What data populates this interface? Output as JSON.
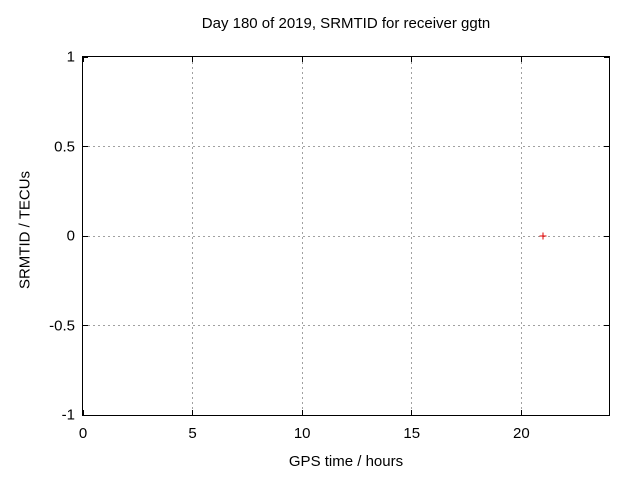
{
  "chart_data": {
    "type": "scatter",
    "title": "Day 180 of 2019, SRMTID for receiver ggtn",
    "xlabel": "GPS time / hours",
    "ylabel": "SRMTID / TECUs",
    "xlim": [
      0,
      24
    ],
    "ylim": [
      -1,
      1
    ],
    "xticks": [
      0,
      5,
      10,
      15,
      20
    ],
    "xtick_labels": [
      "0",
      "5",
      "10",
      "15",
      "20"
    ],
    "yticks": [
      1,
      0.5,
      0,
      -0.5,
      -1
    ],
    "ytick_labels": [
      "1",
      "0.5",
      "0",
      "-0.5",
      "-1"
    ],
    "grid": true,
    "legend": "none",
    "colors": {
      "background": "#ffffff",
      "axis": "#000000",
      "grid": "#a0a0a0",
      "text": "#000000"
    },
    "series": [
      {
        "name": "srmtid-points",
        "marker": "plus",
        "color": "#e00000",
        "points": [
          {
            "x": 21,
            "y": 0
          }
        ]
      }
    ]
  }
}
